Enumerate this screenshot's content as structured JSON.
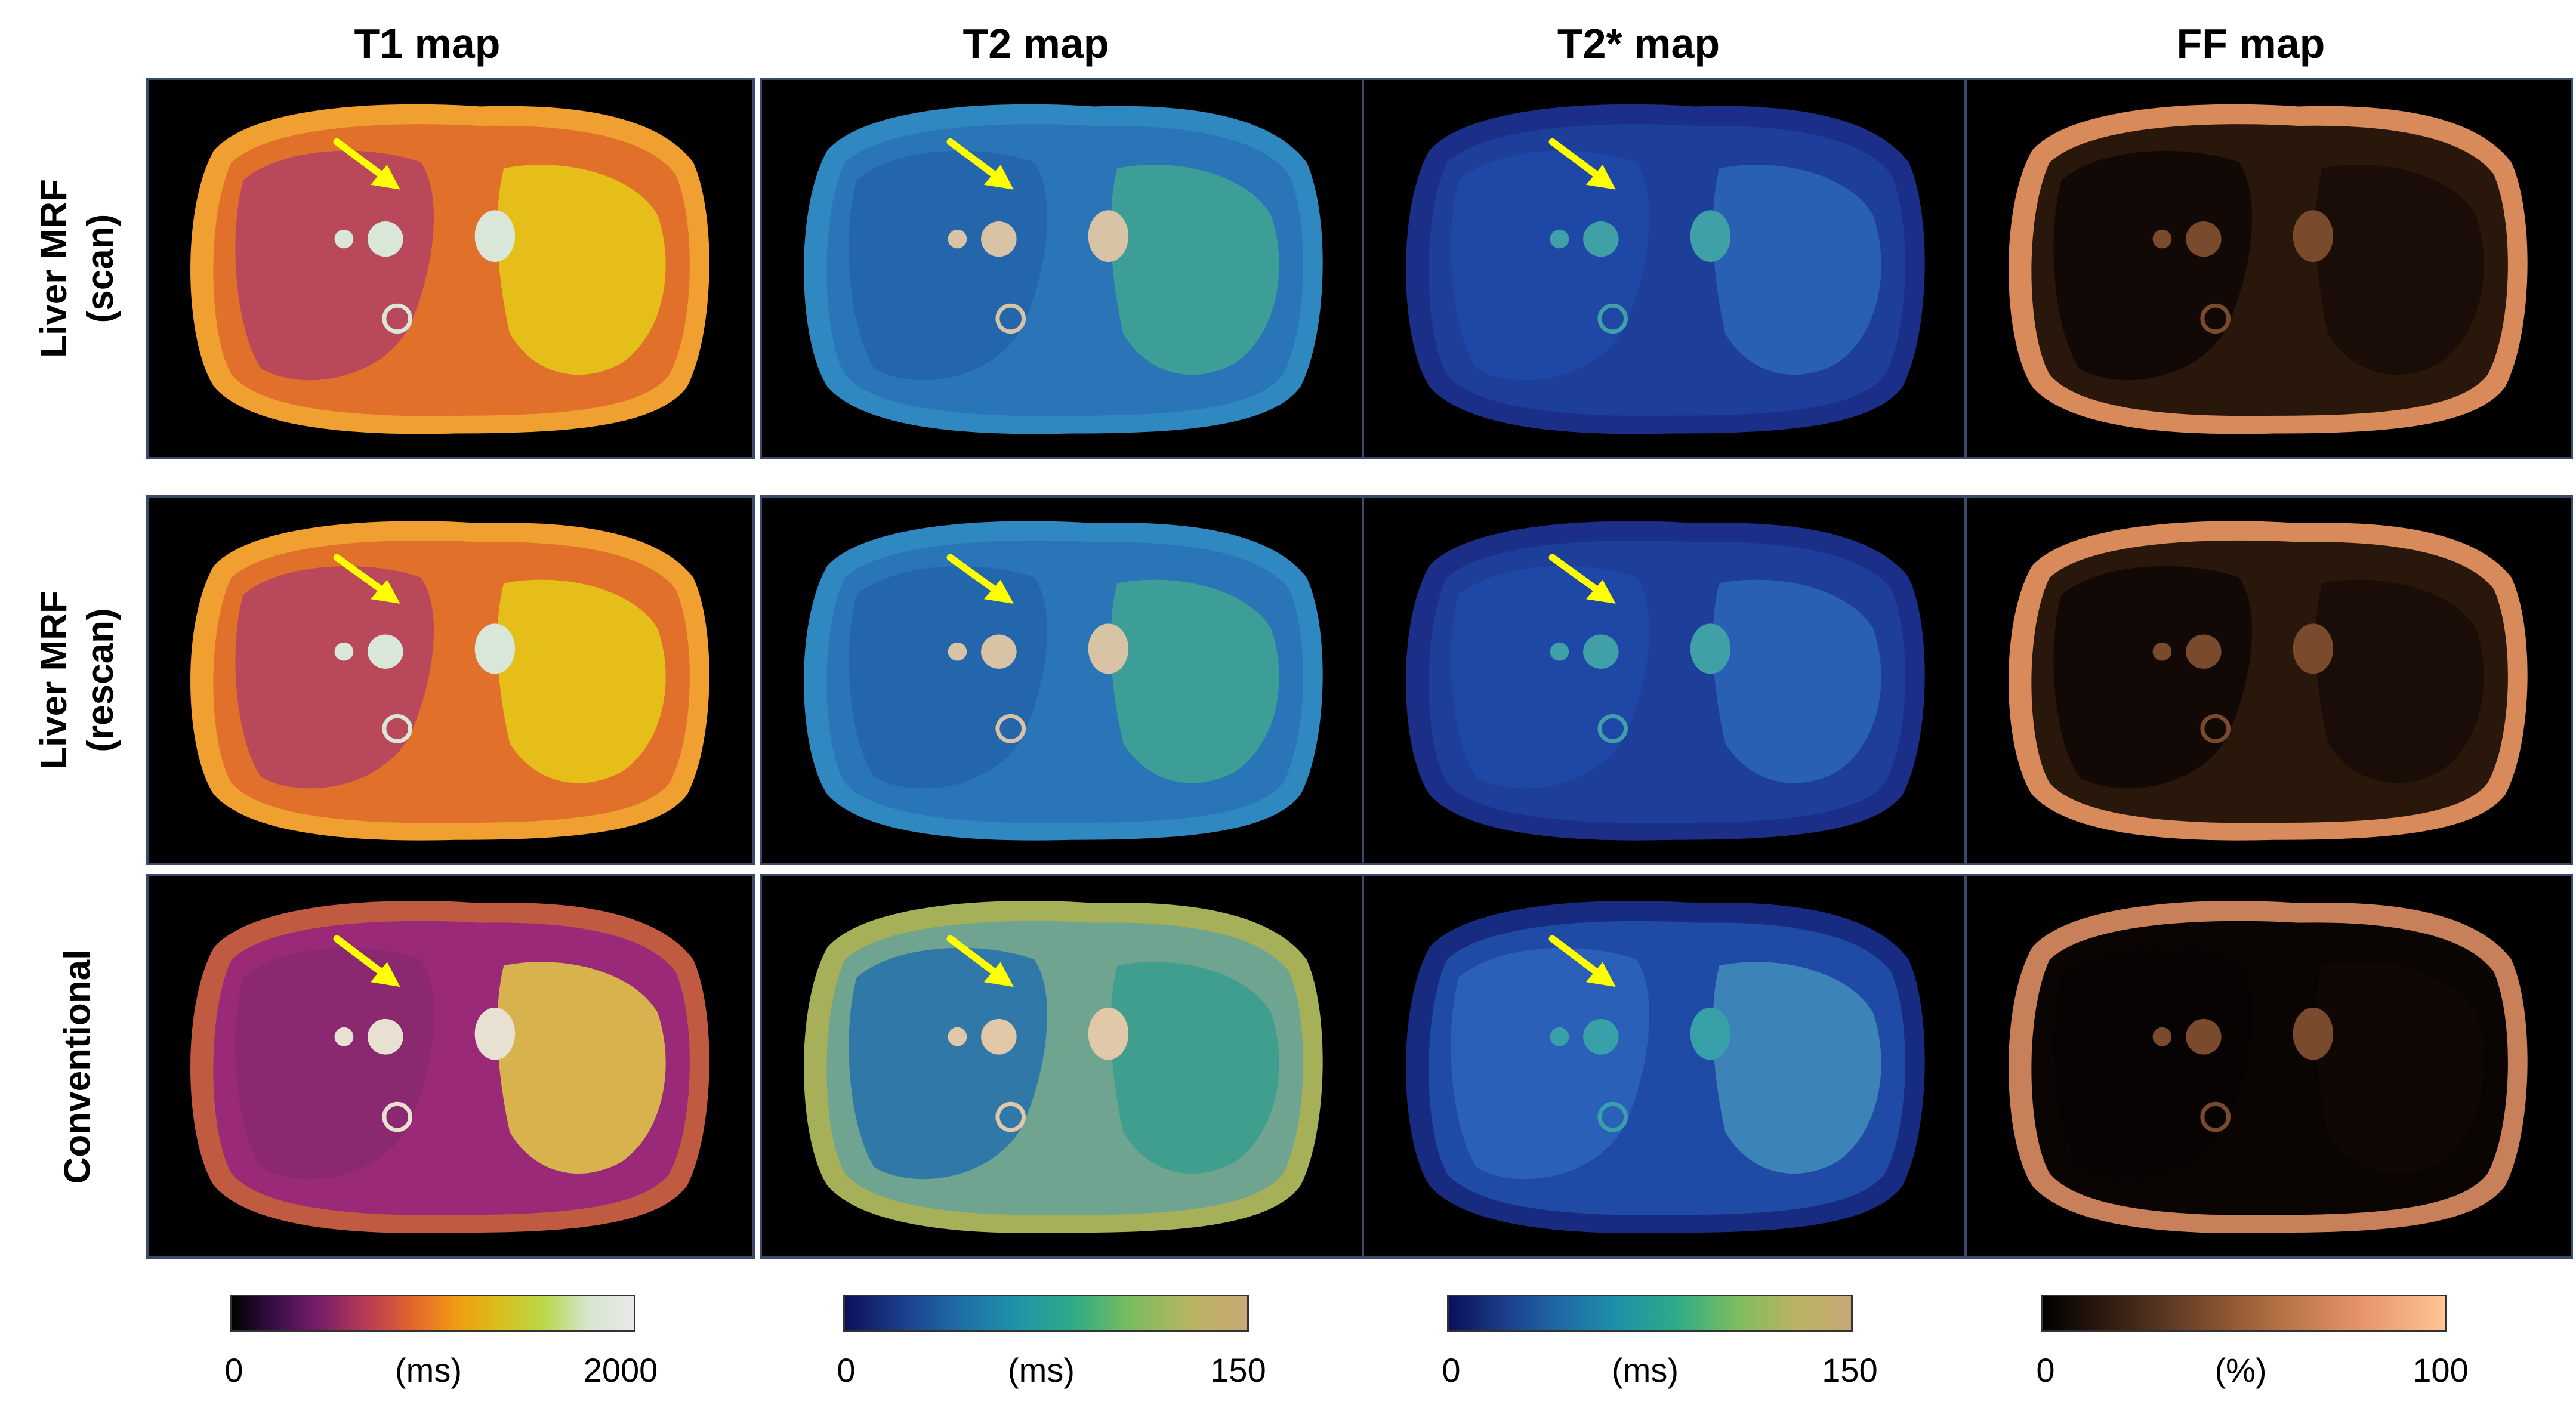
{
  "columns": [
    {
      "title": "T1 map",
      "colorbar": {
        "min": "0",
        "unit": "(ms)",
        "max": "2000",
        "colormap": "magma-like",
        "stops": [
          "#000000",
          "#3a0f4a",
          "#7a1f6a",
          "#b63a55",
          "#e0632e",
          "#f09a12",
          "#d8c01c",
          "#b9d84a",
          "#d4e6cf",
          "#e9e9e9"
        ]
      }
    },
    {
      "title": "T2 map",
      "colorbar": {
        "min": "0",
        "unit": "(ms)",
        "max": "150",
        "colormap": "batlow-like",
        "stops": [
          "#0b0f5c",
          "#1b3f8a",
          "#1f6ca8",
          "#1f93a8",
          "#2fac86",
          "#7cbd5e",
          "#b8b460",
          "#c9a876"
        ]
      }
    },
    {
      "title": "T2* map",
      "colorbar": {
        "min": "0",
        "unit": "(ms)",
        "max": "150",
        "colormap": "batlow-like",
        "stops": [
          "#0b0f5c",
          "#1b3f8a",
          "#1f6ca8",
          "#1f93a8",
          "#2fac86",
          "#7cbd5e",
          "#b8b460",
          "#c9a876"
        ]
      }
    },
    {
      "title": "FF map",
      "colorbar": {
        "min": "0",
        "unit": "(%)",
        "max": "100",
        "colormap": "copper",
        "stops": [
          "#000000",
          "#3a2214",
          "#7a4a2c",
          "#b77346",
          "#e8956a",
          "#ffc592"
        ]
      }
    }
  ],
  "rows": [
    {
      "label_line1": "Liver MRF",
      "label_line2": "(scan)"
    },
    {
      "label_line1": "Liver MRF",
      "label_line2": "(rescan)"
    },
    {
      "label_line1": "Conventional",
      "label_line2": ""
    }
  ],
  "colors": {
    "arrow": "#ffff00",
    "panel_border": "#3a4a6a",
    "background": "#ffffff"
  },
  "panel_tints": {
    "T1 map": {
      "body": "#e0702a",
      "liver": "#b8485a",
      "spleen": "#e6be1a",
      "vessel": "#d9e7d9",
      "rim": "#f0a030"
    },
    "T2 map": {
      "body": "#2a74b8",
      "liver": "#2466ac",
      "spleen": "#3c9e96",
      "vessel": "#d8c4a4",
      "rim": "#2f88c0"
    },
    "T2* map": {
      "body": "#1d3f9a",
      "liver": "#1f48a6",
      "spleen": "#2a60b4",
      "vessel": "#3fa0a8",
      "rim": "#1b2f88"
    },
    "FF map": {
      "body": "#2a170c",
      "liver": "#120906",
      "spleen": "#1a0d07",
      "vessel": "#7a4a2c",
      "rim": "#d98a5a"
    }
  },
  "conventional_tints": {
    "T1 map": {
      "body": "#9a2a78",
      "liver": "#8a2870",
      "spleen": "#d8b24c",
      "vessel": "#e8e0d0",
      "rim": "#c05a40"
    },
    "T2 map": {
      "body": "#6ea490",
      "liver": "#2f78a8",
      "spleen": "#3f9e8e",
      "vessel": "#e0c8a8",
      "rim": "#a6b058"
    },
    "T2* map": {
      "body": "#1f4aa6",
      "liver": "#2a60b8",
      "spleen": "#3c84b8",
      "vessel": "#38a0a8",
      "rim": "#172c80"
    },
    "FF map": {
      "body": "#0a0503",
      "liver": "#060302",
      "spleen": "#0e0704",
      "vessel": "#7a4a2c",
      "rim": "#c8805a"
    }
  }
}
